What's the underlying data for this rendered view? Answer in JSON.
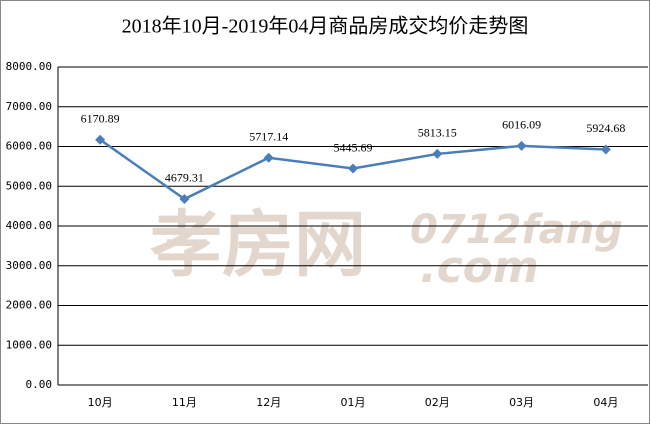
{
  "chart_data": {
    "type": "line",
    "title": "2018年10月-2019年04月商品房成交均价走势图",
    "watermark": [
      "孝房网",
      "0712fang",
      ".com"
    ],
    "categories": [
      "10月",
      "11月",
      "12月",
      "01月",
      "02月",
      "03月",
      "04月"
    ],
    "values": [
      6170.89,
      4679.31,
      5717.14,
      5445.69,
      5813.15,
      6016.09,
      5924.68
    ],
    "color": "#4a7ebb",
    "ylim": [
      0,
      8000
    ],
    "yticks": [
      {
        "value": 0,
        "label": "0.00"
      },
      {
        "value": 1000,
        "label": "1000.00"
      },
      {
        "value": 2000,
        "label": "2000.00"
      },
      {
        "value": 3000,
        "label": "3000.00"
      },
      {
        "value": 4000,
        "label": "4000.00"
      },
      {
        "value": 5000,
        "label": "5000.00"
      },
      {
        "value": 6000,
        "label": "6000.00"
      },
      {
        "value": 7000,
        "label": "7000.00"
      },
      {
        "value": 8000,
        "label": "8000.00"
      }
    ],
    "grid": true
  }
}
